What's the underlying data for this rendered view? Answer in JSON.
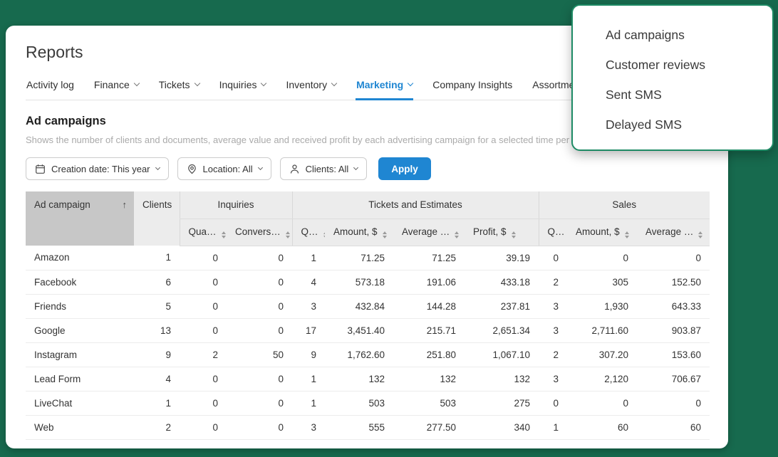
{
  "app": {
    "title": "Reports"
  },
  "tabs": [
    {
      "label": "Activity log",
      "dropdown": false,
      "active": false
    },
    {
      "label": "Finance",
      "dropdown": true,
      "active": false
    },
    {
      "label": "Tickets",
      "dropdown": true,
      "active": false
    },
    {
      "label": "Inquiries",
      "dropdown": true,
      "active": false
    },
    {
      "label": "Inventory",
      "dropdown": true,
      "active": false
    },
    {
      "label": "Marketing",
      "dropdown": true,
      "active": true
    },
    {
      "label": "Company Insights",
      "dropdown": false,
      "active": false
    },
    {
      "label": "Assortment",
      "dropdown": false,
      "active": false
    }
  ],
  "marketing_menu": {
    "items": [
      "Ad campaigns",
      "Customer reviews",
      "Sent SMS",
      "Delayed SMS"
    ]
  },
  "report": {
    "title": "Ad campaigns",
    "description": "Shows the number of clients and documents, average value and received profit by each advertising campaign for a selected time per"
  },
  "filters": {
    "creation_date": {
      "label": "Creation date: This year",
      "icon": "calendar-icon"
    },
    "location": {
      "label": "Location: All",
      "icon": "location-icon"
    },
    "clients": {
      "label": "Clients: All",
      "icon": "person-icon"
    },
    "apply_label": "Apply"
  },
  "table": {
    "groups": {
      "ad_campaign": "Ad campaign",
      "clients": "Clients",
      "inquiries": "Inquiries",
      "tickets": "Tickets and Estimates",
      "sales": "Sales"
    },
    "sort": {
      "column": "Ad campaign",
      "direction": "asc",
      "icon": "↑"
    },
    "sub_columns": [
      {
        "label": "Qua…"
      },
      {
        "label": "Convers…"
      },
      {
        "label": "Q…"
      },
      {
        "label": "Amount, $"
      },
      {
        "label": "Average …"
      },
      {
        "label": "Profit, $"
      },
      {
        "label": "Q…"
      },
      {
        "label": "Amount, $"
      },
      {
        "label": "Average …"
      }
    ],
    "rows": [
      [
        "Amazon",
        "1",
        "0",
        "0",
        "1",
        "71.25",
        "71.25",
        "39.19",
        "0",
        "0",
        "0"
      ],
      [
        "Facebook",
        "6",
        "0",
        "0",
        "4",
        "573.18",
        "191.06",
        "433.18",
        "2",
        "305",
        "152.50"
      ],
      [
        "Friends",
        "5",
        "0",
        "0",
        "3",
        "432.84",
        "144.28",
        "237.81",
        "3",
        "1,930",
        "643.33"
      ],
      [
        "Google",
        "13",
        "0",
        "0",
        "17",
        "3,451.40",
        "215.71",
        "2,651.34",
        "3",
        "2,711.60",
        "903.87"
      ],
      [
        "Instagram",
        "9",
        "2",
        "50",
        "9",
        "1,762.60",
        "251.80",
        "1,067.10",
        "2",
        "307.20",
        "153.60"
      ],
      [
        "Lead Form",
        "4",
        "0",
        "0",
        "1",
        "132",
        "132",
        "132",
        "3",
        "2,120",
        "706.67"
      ],
      [
        "LiveChat",
        "1",
        "0",
        "0",
        "1",
        "503",
        "503",
        "275",
        "0",
        "0",
        "0"
      ],
      [
        "Web",
        "2",
        "0",
        "0",
        "3",
        "555",
        "277.50",
        "340",
        "1",
        "60",
        "60"
      ]
    ]
  },
  "colors": {
    "background_green": "#176a4e",
    "accent_blue": "#1f86d2",
    "menu_border_green": "#1d8a64",
    "header_gray": "#ececec",
    "sorted_header_gray": "#c7c7c7"
  }
}
